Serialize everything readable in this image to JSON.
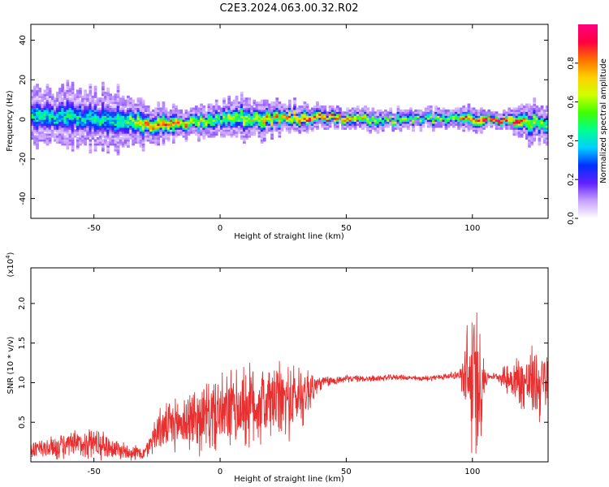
{
  "title": "C2E3.2024.063.00.32.R02",
  "chart_data": [
    {
      "type": "heatmap",
      "xlabel": "Height of straight line (km)",
      "ylabel": "Frequency (Hz)",
      "xlim": [
        -75,
        130
      ],
      "ylim": [
        -50,
        48
      ],
      "xticks": [
        -50,
        0,
        50,
        100
      ],
      "yticks": [
        -40,
        -20,
        0,
        20,
        40
      ],
      "colorbar": {
        "label": "Normalized spectral amplitude",
        "range": [
          0,
          1
        ],
        "ticks": [
          "0.0",
          "0.2",
          "0.4",
          "0.6",
          "0.8"
        ],
        "tick_values": [
          0,
          0.2,
          0.4,
          0.6,
          0.8
        ],
        "colors": [
          "#ffffff",
          "#c8a0ff",
          "#6020ff",
          "#0030ff",
          "#00d0ff",
          "#00ff90",
          "#40ff00",
          "#d0ff00",
          "#ffd000",
          "#ff7000",
          "#ff0040",
          "#ff0080"
        ]
      },
      "center_frequency": [
        [
          -75,
          2
        ],
        [
          -60,
          1
        ],
        [
          -45,
          0
        ],
        [
          -35,
          -1
        ],
        [
          -25,
          -3
        ],
        [
          -15,
          -2
        ],
        [
          -5,
          -1
        ],
        [
          5,
          1
        ],
        [
          15,
          0
        ],
        [
          25,
          1
        ],
        [
          35,
          1
        ],
        [
          45,
          1
        ],
        [
          60,
          0
        ],
        [
          80,
          0
        ],
        [
          95,
          1
        ],
        [
          105,
          0
        ],
        [
          115,
          -1
        ],
        [
          130,
          -2
        ]
      ],
      "band_halfwidth": [
        [
          -75,
          8
        ],
        [
          -40,
          9
        ],
        [
          -30,
          6
        ],
        [
          -10,
          4
        ],
        [
          10,
          6
        ],
        [
          30,
          4
        ],
        [
          40,
          3
        ],
        [
          90,
          3
        ],
        [
          100,
          4
        ],
        [
          110,
          2
        ],
        [
          120,
          5
        ],
        [
          130,
          6
        ]
      ],
      "peak_amplitude": [
        [
          -75,
          0.45
        ],
        [
          -40,
          0.45
        ],
        [
          -30,
          0.75
        ],
        [
          -20,
          0.85
        ],
        [
          0,
          0.55
        ],
        [
          20,
          0.75
        ],
        [
          35,
          0.95
        ],
        [
          50,
          0.85
        ],
        [
          60,
          0.65
        ],
        [
          80,
          0.55
        ],
        [
          95,
          0.8
        ],
        [
          105,
          0.98
        ],
        [
          115,
          0.9
        ],
        [
          130,
          0.5
        ]
      ]
    },
    {
      "type": "line",
      "xlabel": "Height of straight line (km)",
      "ylabel": "SNR (10 * v/v)",
      "y_multiplier": "(x10",
      "y_multiplier_exp": "4",
      "y_multiplier_close": ")",
      "xlim": [
        -75,
        130
      ],
      "ylim": [
        0,
        2.45
      ],
      "xticks": [
        -50,
        0,
        50,
        100
      ],
      "yticks": [
        "0.5",
        "1.0",
        "1.5",
        "2.0"
      ],
      "ytick_values": [
        0.5,
        1.0,
        1.5,
        2.0
      ],
      "color": "#e83030",
      "series": [
        {
          "x": [
            -75,
            -60,
            -50,
            -40,
            -30,
            -25,
            -20,
            -10,
            0,
            10,
            20,
            30,
            35,
            40,
            50,
            60,
            70,
            80,
            90,
            95,
            98,
            100,
            102,
            104,
            106,
            110,
            115,
            120,
            125,
            130
          ],
          "y": [
            0.15,
            0.2,
            0.25,
            0.15,
            0.1,
            0.4,
            0.45,
            0.55,
            0.6,
            0.7,
            0.75,
            0.8,
            0.9,
            1.0,
            1.05,
            1.05,
            1.07,
            1.05,
            1.08,
            1.1,
            1.0,
            1.0,
            1.0,
            1.05,
            1.08,
            1.08,
            1.05,
            1.0,
            1.0,
            0.95
          ],
          "amp": [
            0.15,
            0.2,
            0.25,
            0.15,
            0.1,
            0.3,
            0.35,
            0.5,
            0.55,
            0.65,
            0.6,
            0.55,
            0.4,
            0.1,
            0.05,
            0.05,
            0.04,
            0.04,
            0.05,
            0.06,
            0.9,
            1.2,
            1.1,
            0.7,
            0.05,
            0.05,
            0.3,
            0.45,
            0.55,
            0.6
          ]
        }
      ]
    }
  ]
}
